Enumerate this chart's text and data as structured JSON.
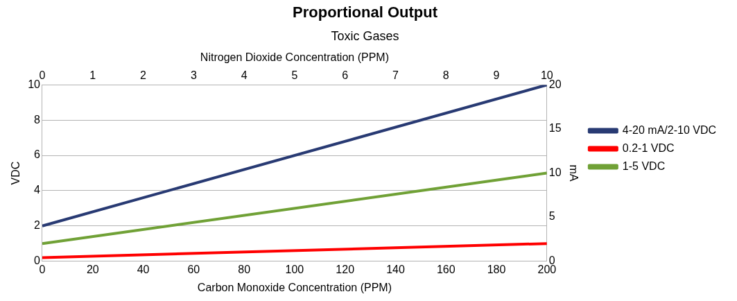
{
  "chart_data": {
    "type": "line",
    "title": "Proportional Output",
    "subtitle": "Toxic Gases",
    "xlabel": "Carbon Monoxide Concentration (PPM)",
    "x2label": "Nitrogen Dioxide Concentration (PPM)",
    "ylabel": "VDC",
    "y2label": "mA",
    "x": [
      0,
      200
    ],
    "series": [
      {
        "name": "4-20 mA/2-10 VDC",
        "color": "#283a73",
        "values": [
          2,
          10
        ]
      },
      {
        "name": "0.2-1 VDC",
        "color": "#ff0000",
        "values": [
          0.2,
          1
        ]
      },
      {
        "name": "1-5 VDC",
        "color": "#70a136",
        "values": [
          1,
          5
        ]
      }
    ],
    "xlim": [
      0,
      200
    ],
    "xticks": [
      0,
      20,
      40,
      60,
      80,
      100,
      120,
      140,
      160,
      180,
      200
    ],
    "x2lim": [
      0,
      10
    ],
    "x2ticks": [
      0,
      1,
      2,
      3,
      4,
      5,
      6,
      7,
      8,
      9,
      10
    ],
    "ylim": [
      0,
      10
    ],
    "yticks": [
      0,
      2,
      4,
      6,
      8,
      10
    ],
    "y2lim": [
      0,
      20
    ],
    "y2ticks": [
      0,
      5,
      10,
      15,
      20
    ],
    "grid": "y",
    "legend": "right",
    "marker": "none",
    "line_style": "solid"
  }
}
